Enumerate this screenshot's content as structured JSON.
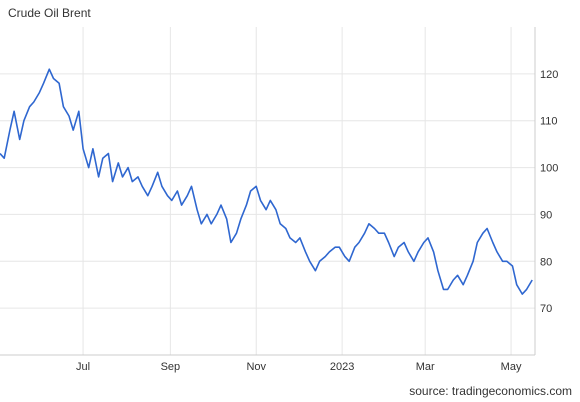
{
  "title": "Crude Oil Brent",
  "source": "source: tradingeconomics.com",
  "colors": {
    "line": "#2f67d0",
    "grid": "#e6e6e6",
    "axis": "#cccccc",
    "text": "#333333"
  },
  "chart_data": {
    "type": "line",
    "title": "Crude Oil Brent",
    "xlabel": "",
    "ylabel": "",
    "ylim": [
      60,
      130
    ],
    "y_ticks": [
      70,
      80,
      90,
      100,
      110,
      120
    ],
    "x_ticks": [
      "Jul",
      "Sep",
      "Nov",
      "2023",
      "Mar",
      "May"
    ],
    "x_tick_positions": [
      "2022-07-01",
      "2022-09-01",
      "2022-11-01",
      "2023-01-01",
      "2023-03-01",
      "2023-05-01"
    ],
    "xlim": [
      "2022-05-03",
      "2023-05-18"
    ],
    "grid": true,
    "y_axis_side": "right",
    "series": [
      {
        "x": [
          "2022-05-03",
          "2022-05-06",
          "2022-05-10",
          "2022-05-13",
          "2022-05-17",
          "2022-05-20",
          "2022-05-24",
          "2022-05-27",
          "2022-05-31",
          "2022-06-03",
          "2022-06-07",
          "2022-06-10",
          "2022-06-14",
          "2022-06-17",
          "2022-06-21",
          "2022-06-24",
          "2022-06-28",
          "2022-07-01",
          "2022-07-05",
          "2022-07-08",
          "2022-07-12",
          "2022-07-15",
          "2022-07-19",
          "2022-07-22",
          "2022-07-26",
          "2022-07-29",
          "2022-08-02",
          "2022-08-05",
          "2022-08-09",
          "2022-08-12",
          "2022-08-16",
          "2022-08-19",
          "2022-08-23",
          "2022-08-26",
          "2022-08-30",
          "2022-09-02",
          "2022-09-06",
          "2022-09-09",
          "2022-09-13",
          "2022-09-16",
          "2022-09-20",
          "2022-09-23",
          "2022-09-27",
          "2022-09-30",
          "2022-10-04",
          "2022-10-07",
          "2022-10-11",
          "2022-10-14",
          "2022-10-18",
          "2022-10-21",
          "2022-10-25",
          "2022-10-28",
          "2022-11-01",
          "2022-11-04",
          "2022-11-08",
          "2022-11-11",
          "2022-11-15",
          "2022-11-18",
          "2022-11-22",
          "2022-11-25",
          "2022-11-29",
          "2022-12-02",
          "2022-12-06",
          "2022-12-09",
          "2022-12-13",
          "2022-12-16",
          "2022-12-20",
          "2022-12-23",
          "2022-12-27",
          "2022-12-30",
          "2023-01-03",
          "2023-01-06",
          "2023-01-10",
          "2023-01-13",
          "2023-01-17",
          "2023-01-20",
          "2023-01-24",
          "2023-01-27",
          "2023-01-31",
          "2023-02-03",
          "2023-02-07",
          "2023-02-10",
          "2023-02-14",
          "2023-02-17",
          "2023-02-21",
          "2023-02-24",
          "2023-02-28",
          "2023-03-03",
          "2023-03-07",
          "2023-03-10",
          "2023-03-14",
          "2023-03-17",
          "2023-03-21",
          "2023-03-24",
          "2023-03-28",
          "2023-03-31",
          "2023-04-04",
          "2023-04-07",
          "2023-04-11",
          "2023-04-14",
          "2023-04-18",
          "2023-04-21",
          "2023-04-25",
          "2023-04-28",
          "2023-05-02",
          "2023-05-05",
          "2023-05-09",
          "2023-05-12",
          "2023-05-16"
        ],
        "values": [
          103,
          102,
          108,
          112,
          106,
          110,
          113,
          114,
          116,
          118,
          121,
          119,
          118,
          113,
          111,
          108,
          112,
          104,
          100,
          104,
          98,
          102,
          103,
          97,
          101,
          98,
          100,
          97,
          98,
          96,
          94,
          96,
          99,
          96,
          94,
          93,
          95,
          92,
          94,
          96,
          91,
          88,
          90,
          88,
          90,
          92,
          89,
          84,
          86,
          89,
          92,
          95,
          96,
          93,
          91,
          93,
          91,
          88,
          87,
          85,
          84,
          85,
          82,
          80,
          78,
          80,
          81,
          82,
          83,
          83,
          81,
          80,
          83,
          84,
          86,
          88,
          87,
          86,
          86,
          84,
          81,
          83,
          84,
          82,
          80,
          82,
          84,
          85,
          82,
          78,
          74,
          74,
          76,
          77,
          75,
          77,
          80,
          84,
          86,
          87,
          84,
          82,
          80,
          80,
          79,
          75,
          73,
          74,
          76
        ]
      }
    ]
  }
}
